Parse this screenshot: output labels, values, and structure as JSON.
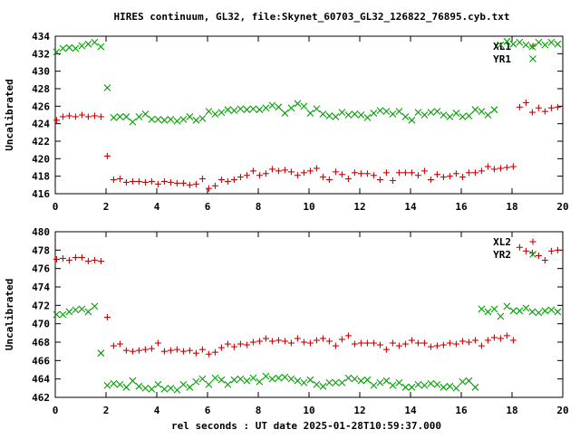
{
  "page": {
    "title": "HIRES continuum, GL32, file:Skynet_60703_GL32_126822_76895.cyb.txt",
    "xlabel": "rel seconds : UT date 2025-01-28T10:59:37.000"
  },
  "chart_data": [
    {
      "type": "scatter",
      "title": "HIRES continuum, GL32, file:Skynet_60703_GL32_126822_76895.cyb.txt",
      "xlabel": "",
      "ylabel": "Uncalibrated",
      "xlim": [
        0,
        20
      ],
      "ylim": [
        416,
        434
      ],
      "xticks": [
        "0",
        "2",
        "4",
        "6",
        "8",
        "10",
        "12",
        "14",
        "16",
        "18",
        "20"
      ],
      "yticks": [
        "416",
        "418",
        "420",
        "422",
        "424",
        "426",
        "428",
        "430",
        "432",
        "434"
      ],
      "x": [
        0.05,
        0.3,
        0.55,
        0.8,
        1.05,
        1.3,
        1.55,
        1.8,
        2.05,
        2.3,
        2.55,
        2.8,
        3.05,
        3.3,
        3.55,
        3.8,
        4.05,
        4.3,
        4.55,
        4.8,
        5.05,
        5.3,
        5.55,
        5.8,
        6.05,
        6.3,
        6.55,
        6.8,
        7.05,
        7.3,
        7.55,
        7.8,
        8.05,
        8.3,
        8.55,
        8.8,
        9.05,
        9.3,
        9.55,
        9.8,
        10.05,
        10.3,
        10.55,
        10.8,
        11.05,
        11.3,
        11.55,
        11.8,
        12.05,
        12.3,
        12.55,
        12.8,
        13.05,
        13.3,
        13.55,
        13.8,
        14.05,
        14.3,
        14.55,
        14.8,
        15.05,
        15.3,
        15.55,
        15.8,
        16.05,
        16.3,
        16.55,
        16.8,
        17.05,
        17.3,
        17.55,
        17.8,
        18.05,
        18.3,
        18.55,
        18.8,
        19.05,
        19.3,
        19.55,
        19.8
      ],
      "series": [
        {
          "name": "XL1",
          "marker": "plus",
          "color": "#d00000",
          "values": [
            424.4,
            424.8,
            424.9,
            424.8,
            425.0,
            424.8,
            424.9,
            424.8,
            420.3,
            417.6,
            417.7,
            417.3,
            417.4,
            417.4,
            417.3,
            417.4,
            417.1,
            417.4,
            417.3,
            417.2,
            417.2,
            417.0,
            417.1,
            417.7,
            416.6,
            416.9,
            417.6,
            417.4,
            417.6,
            417.9,
            418.1,
            418.6,
            418.1,
            418.3,
            418.8,
            418.6,
            418.7,
            418.5,
            418.1,
            418.4,
            418.6,
            418.9,
            417.9,
            417.6,
            418.5,
            418.2,
            417.7,
            418.4,
            418.3,
            418.3,
            418.1,
            417.6,
            418.4,
            417.5,
            418.4,
            418.4,
            418.4,
            418.1,
            418.6,
            417.6,
            418.2,
            417.9,
            418.0,
            418.3,
            417.9,
            418.4,
            418.4,
            418.6,
            419.1,
            418.8,
            418.9,
            419.0,
            419.1,
            425.9,
            426.4,
            425.3,
            425.8,
            425.4,
            425.8,
            425.9
          ]
        },
        {
          "name": "YR1",
          "marker": "cross",
          "color": "#00a000",
          "values": [
            432.2,
            432.6,
            432.7,
            432.6,
            432.9,
            433.1,
            433.3,
            432.8,
            428.1,
            424.7,
            424.8,
            424.8,
            424.2,
            424.8,
            425.1,
            424.5,
            424.5,
            424.4,
            424.5,
            424.3,
            424.5,
            424.8,
            424.4,
            424.6,
            425.4,
            425.1,
            425.3,
            425.6,
            425.5,
            425.7,
            425.6,
            425.7,
            425.6,
            425.8,
            426.1,
            425.9,
            425.2,
            425.8,
            426.3,
            426.0,
            425.2,
            425.7,
            425.1,
            424.9,
            424.8,
            425.3,
            425.0,
            425.1,
            425.0,
            424.7,
            425.2,
            425.5,
            425.4,
            425.1,
            425.4,
            424.8,
            424.4,
            425.3,
            425.0,
            425.3,
            425.4,
            425.0,
            424.8,
            425.2,
            424.8,
            424.9,
            425.6,
            425.4,
            425.0,
            425.6,
            433.0,
            433.4,
            433.1,
            433.3,
            433.0,
            432.8,
            433.3,
            433.0,
            433.3,
            433.1
          ]
        }
      ],
      "legend": "top-right"
    },
    {
      "type": "scatter",
      "title": "",
      "xlabel": "rel seconds : UT date 2025-01-28T10:59:37.000",
      "ylabel": "Uncalibrated",
      "xlim": [
        0,
        20
      ],
      "ylim": [
        462,
        480
      ],
      "xticks": [
        "0",
        "2",
        "4",
        "6",
        "8",
        "10",
        "12",
        "14",
        "16",
        "18",
        "20"
      ],
      "yticks": [
        "462",
        "464",
        "466",
        "468",
        "470",
        "472",
        "474",
        "476",
        "478",
        "480"
      ],
      "x": [
        0.05,
        0.3,
        0.55,
        0.8,
        1.05,
        1.3,
        1.55,
        1.8,
        2.05,
        2.3,
        2.55,
        2.8,
        3.05,
        3.3,
        3.55,
        3.8,
        4.05,
        4.3,
        4.55,
        4.8,
        5.05,
        5.3,
        5.55,
        5.8,
        6.05,
        6.3,
        6.55,
        6.8,
        7.05,
        7.3,
        7.55,
        7.8,
        8.05,
        8.3,
        8.55,
        8.8,
        9.05,
        9.3,
        9.55,
        9.8,
        10.05,
        10.3,
        10.55,
        10.8,
        11.05,
        11.3,
        11.55,
        11.8,
        12.05,
        12.3,
        12.55,
        12.8,
        13.05,
        13.3,
        13.55,
        13.8,
        14.05,
        14.3,
        14.55,
        14.8,
        15.05,
        15.3,
        15.55,
        15.8,
        16.05,
        16.3,
        16.55,
        16.8,
        17.05,
        17.3,
        17.55,
        17.8,
        18.05,
        18.3,
        18.55,
        18.8,
        19.05,
        19.3,
        19.55,
        19.8
      ],
      "series": [
        {
          "name": "XL2",
          "marker": "plus",
          "color": "#d00000",
          "values": [
            477.0,
            477.1,
            476.9,
            477.2,
            477.2,
            476.8,
            476.9,
            476.8,
            470.7,
            467.6,
            467.8,
            467.1,
            467.0,
            467.1,
            467.2,
            467.3,
            467.9,
            467.0,
            467.1,
            467.2,
            467.0,
            467.1,
            466.8,
            467.2,
            466.7,
            466.9,
            467.4,
            467.8,
            467.5,
            467.8,
            467.7,
            468.0,
            468.1,
            468.4,
            468.1,
            468.2,
            468.1,
            467.9,
            468.4,
            468.0,
            467.9,
            468.2,
            468.4,
            468.1,
            467.6,
            468.3,
            468.7,
            467.8,
            467.9,
            467.9,
            467.9,
            467.7,
            467.2,
            467.9,
            467.6,
            467.8,
            468.2,
            467.9,
            467.9,
            467.5,
            467.6,
            467.7,
            467.9,
            467.8,
            468.1,
            468.0,
            468.2,
            467.6,
            468.2,
            468.5,
            468.4,
            468.7,
            468.2,
            478.3,
            477.9,
            477.7,
            477.4,
            476.9,
            477.9,
            478.0
          ]
        },
        {
          "name": "YR2",
          "marker": "cross",
          "color": "#00a000",
          "values": [
            471.0,
            471.0,
            471.3,
            471.5,
            471.6,
            471.3,
            471.9,
            466.8,
            463.3,
            463.5,
            463.4,
            463.1,
            463.8,
            463.2,
            463.0,
            462.9,
            463.4,
            462.9,
            463.0,
            462.8,
            463.4,
            463.1,
            463.7,
            464.0,
            463.4,
            464.1,
            463.9,
            463.4,
            463.9,
            464.0,
            463.8,
            464.1,
            463.7,
            464.3,
            464.0,
            464.1,
            464.2,
            464.0,
            463.8,
            463.6,
            463.9,
            463.4,
            463.2,
            463.6,
            463.6,
            463.6,
            464.1,
            464.0,
            463.8,
            463.9,
            463.3,
            463.6,
            463.8,
            463.3,
            463.6,
            463.1,
            463.1,
            463.4,
            463.3,
            463.5,
            463.4,
            463.1,
            463.2,
            463.0,
            463.7,
            463.8,
            463.1,
            471.6,
            471.3,
            471.6,
            470.8,
            471.9,
            471.4,
            471.4,
            471.7,
            471.3,
            471.2,
            471.4,
            471.5,
            471.3
          ]
        }
      ],
      "legend": "top-right"
    }
  ]
}
